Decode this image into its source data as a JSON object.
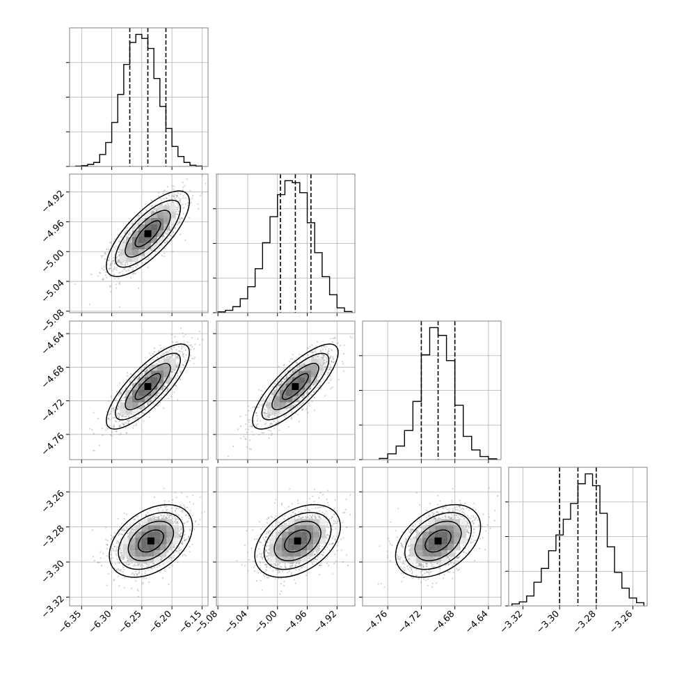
{
  "chart_data": {
    "type": "corner",
    "parameters": 4,
    "grid": true,
    "quantiles": [
      0.16,
      0.5,
      0.84
    ],
    "histograms": [
      {
        "param": 0,
        "xlim": [
          -6.37,
          -6.14
        ],
        "bin_edges": [
          -6.36,
          -6.35,
          -6.34,
          -6.33,
          -6.32,
          -6.31,
          -6.3,
          -6.29,
          -6.28,
          -6.27,
          -6.26,
          -6.25,
          -6.24,
          -6.23,
          -6.22,
          -6.21,
          -6.2,
          -6.19,
          -6.18,
          -6.17,
          -6.16,
          -6.15
        ],
        "counts": [
          1,
          2,
          5,
          10,
          30,
          60,
          110,
          180,
          255,
          310,
          330,
          320,
          295,
          220,
          150,
          95,
          50,
          25,
          10,
          3,
          1
        ],
        "quantile_values": [
          -6.27,
          -6.24,
          -6.21
        ]
      },
      {
        "param": 1,
        "xlim": [
          -5.082,
          -4.896
        ],
        "bin_edges": [
          -5.08,
          -5.07,
          -5.06,
          -5.05,
          -5.04,
          -5.03,
          -5.02,
          -5.01,
          -5.0,
          -4.99,
          -4.98,
          -4.97,
          -4.96,
          -4.95,
          -4.94,
          -4.93,
          -4.92,
          -4.91,
          -4.9
        ],
        "counts": [
          2,
          6,
          15,
          35,
          65,
          110,
          175,
          240,
          295,
          330,
          325,
          300,
          225,
          150,
          90,
          45,
          12,
          3
        ],
        "quantile_values": [
          -4.996,
          -4.976,
          -4.955
        ]
      },
      {
        "param": 2,
        "xlim": [
          -4.79,
          -4.625
        ],
        "bin_edges": [
          -4.77,
          -4.76,
          -4.75,
          -4.74,
          -4.73,
          -4.72,
          -4.71,
          -4.7,
          -4.69,
          -4.68,
          -4.67,
          -4.66,
          -4.65,
          -4.64,
          -4.63
        ],
        "counts": [
          3,
          15,
          35,
          75,
          150,
          270,
          340,
          320,
          255,
          140,
          60,
          25,
          8,
          2
        ],
        "quantile_values": [
          -4.72,
          -4.7,
          -4.68
        ]
      },
      {
        "param": 3,
        "xlim": [
          -3.3278,
          -3.2522
        ],
        "bin_edges": [
          -3.326,
          -3.322,
          -3.318,
          -3.314,
          -3.31,
          -3.306,
          -3.302,
          -3.298,
          -3.294,
          -3.29,
          -3.286,
          -3.282,
          -3.278,
          -3.274,
          -3.27,
          -3.266,
          -3.262,
          -3.258,
          -3.254
        ],
        "counts": [
          5,
          10,
          25,
          60,
          95,
          140,
          180,
          220,
          260,
          310,
          335,
          305,
          235,
          150,
          85,
          45,
          20,
          8
        ],
        "quantile_values": [
          -3.3,
          -3.29,
          -3.28
        ]
      }
    ],
    "pairs": [
      {
        "x": 0,
        "y": 1,
        "mean": [
          -6.24,
          -4.976
        ],
        "sd": [
          0.03,
          0.025
        ],
        "corr": 0.75,
        "ylim": [
          -5.082,
          -4.896
        ]
      },
      {
        "x": 0,
        "y": 2,
        "mean": [
          -6.24,
          -4.703
        ],
        "sd": [
          0.03,
          0.022
        ],
        "corr": 0.8,
        "ylim": [
          -4.79,
          -4.625
        ]
      },
      {
        "x": 1,
        "y": 2,
        "mean": [
          -4.976,
          -4.703
        ],
        "sd": [
          0.025,
          0.022
        ],
        "corr": 0.8,
        "ylim": [
          -4.79,
          -4.625
        ]
      },
      {
        "x": 0,
        "y": 3,
        "mean": [
          -6.235,
          -3.288
        ],
        "sd": [
          0.03,
          0.009
        ],
        "corr": 0.4,
        "ylim": [
          -3.325,
          -3.246
        ]
      },
      {
        "x": 1,
        "y": 3,
        "mean": [
          -4.973,
          -3.288
        ],
        "sd": [
          0.025,
          0.009
        ],
        "corr": 0.4,
        "ylim": [
          -3.325,
          -3.246
        ]
      },
      {
        "x": 2,
        "y": 3,
        "mean": [
          -4.7,
          -3.288
        ],
        "sd": [
          0.022,
          0.009
        ],
        "corr": 0.4,
        "ylim": [
          -3.325,
          -3.246
        ]
      }
    ],
    "x_tick_labels": [
      [
        "−6.35",
        "−6.30",
        "−6.25",
        "−6.20",
        "−6.15"
      ],
      [
        "−5.08",
        "−5.04",
        "−5.00",
        "−4.96",
        "−4.92"
      ],
      [
        "−4.76",
        "−4.72",
        "−4.68",
        "−4.64"
      ],
      [
        "−3.32",
        "−3.30",
        "−3.28",
        "−3.26"
      ]
    ],
    "x_tick_values": [
      [
        -6.35,
        -6.3,
        -6.25,
        -6.2,
        -6.15
      ],
      [
        -5.08,
        -5.04,
        -5.0,
        -4.96,
        -4.92
      ],
      [
        -4.76,
        -4.72,
        -4.68,
        -4.64
      ],
      [
        -3.32,
        -3.3,
        -3.28,
        -3.26
      ]
    ],
    "y_tick_labels": [
      [
        "−5.08",
        "−5.04",
        "−5.00",
        "−4.96",
        "−4.92"
      ],
      [
        "−4.76",
        "−4.72",
        "−4.68",
        "−4.64"
      ],
      [
        "−3.32",
        "−3.30",
        "−3.28",
        "−3.26"
      ]
    ],
    "y_tick_values": [
      [
        -5.08,
        -5.04,
        -5.0,
        -4.96,
        -4.92
      ],
      [
        -4.76,
        -4.72,
        -4.68,
        -4.64
      ],
      [
        -3.32,
        -3.3,
        -3.28,
        -3.26
      ]
    ],
    "hist_y_ticks": 4,
    "colors": {
      "line": "#000000",
      "grid": "#b0b0b0",
      "scatter": "#9a9a9a",
      "frame": "#808080"
    }
  }
}
